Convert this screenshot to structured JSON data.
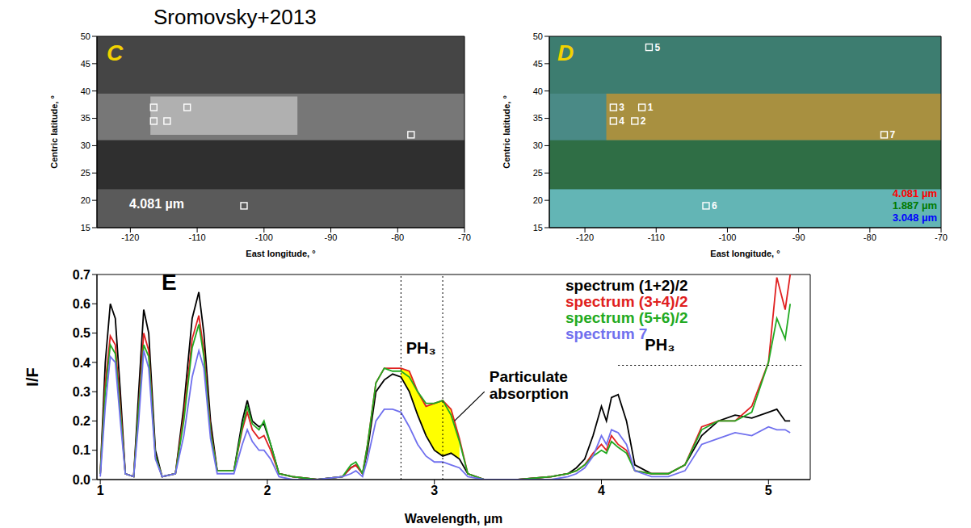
{
  "chart_data": [
    {
      "type": "scatter",
      "panel": "C",
      "title": "Sromovsky+2013",
      "annotation": "4.081 µm",
      "x_label": "East longitude, °",
      "y_label": "Centric latitude, °",
      "xlim": [
        -125,
        -70
      ],
      "ylim": [
        15,
        50
      ],
      "xticks": [
        -120,
        -110,
        -100,
        -90,
        -80,
        -70
      ],
      "yticks": [
        15,
        20,
        25,
        30,
        35,
        40,
        45,
        50
      ],
      "regions": [
        {
          "xlim": [
            -125,
            -70
          ],
          "ylim": [
            15,
            50
          ],
          "color": "#454545"
        },
        {
          "xlim": [
            -125,
            -70
          ],
          "ylim": [
            31,
            39.5
          ],
          "color": "#777777"
        },
        {
          "xlim": [
            -117,
            -95
          ],
          "ylim": [
            32,
            39
          ],
          "color": "#b0b0b0"
        },
        {
          "xlim": [
            -125,
            -70
          ],
          "ylim": [
            22,
            31
          ],
          "color": "#2f2f2f"
        },
        {
          "xlim": [
            -125,
            -70
          ],
          "ylim": [
            15,
            22
          ],
          "color": "#5a5a5a"
        }
      ],
      "marker": "square",
      "color": "#ffffff",
      "points": [
        {
          "x": -116.5,
          "y": 37
        },
        {
          "x": -116.5,
          "y": 34.5
        },
        {
          "x": -114.5,
          "y": 34.5
        },
        {
          "x": -111.5,
          "y": 37
        },
        {
          "x": -78,
          "y": 32
        },
        {
          "x": -103,
          "y": 19
        }
      ]
    },
    {
      "type": "scatter",
      "panel": "D",
      "x_label": "East longitude, °",
      "y_label": "Centric latitude, °",
      "xlim": [
        -125,
        -70
      ],
      "ylim": [
        15,
        50
      ],
      "xticks": [
        -120,
        -110,
        -100,
        -90,
        -80,
        -70
      ],
      "yticks": [
        15,
        20,
        25,
        30,
        35,
        40,
        45,
        50
      ],
      "regions": [
        {
          "xlim": [
            -125,
            -70
          ],
          "ylim": [
            15,
            50
          ],
          "color": "#3d7d70"
        },
        {
          "xlim": [
            -125,
            -70
          ],
          "ylim": [
            31,
            39.5
          ],
          "color": "#4a8a86"
        },
        {
          "xlim": [
            -117,
            -70
          ],
          "ylim": [
            31,
            39.5
          ],
          "color": "#a89040"
        },
        {
          "xlim": [
            -125,
            -70
          ],
          "ylim": [
            22,
            31
          ],
          "color": "#2f6e45"
        },
        {
          "xlim": [
            -125,
            -70
          ],
          "ylim": [
            15,
            22
          ],
          "color": "#63b5b5"
        }
      ],
      "marker": "square",
      "color": "#ffffff",
      "points": [
        {
          "x": -112,
          "y": 37,
          "label": "1"
        },
        {
          "x": -113,
          "y": 34.5,
          "label": "2"
        },
        {
          "x": -116,
          "y": 37,
          "label": "3"
        },
        {
          "x": -116,
          "y": 34.5,
          "label": "4"
        },
        {
          "x": -111,
          "y": 48,
          "label": "5"
        },
        {
          "x": -103,
          "y": 19,
          "label": "6"
        },
        {
          "x": -78,
          "y": 32,
          "label": "7"
        }
      ],
      "legend": "lower right",
      "channels": [
        {
          "name": "4.081 µm",
          "color": "#ff0000"
        },
        {
          "name": "1.887 µm",
          "color": "#007a00"
        },
        {
          "name": "3.048 µm",
          "color": "#0000ff"
        }
      ]
    },
    {
      "type": "line",
      "panel": "E",
      "x_label": "Wavelength, µm",
      "y_label": "I/F",
      "xlim": [
        0.98,
        5.25
      ],
      "ylim": [
        0,
        0.7
      ],
      "xticks": [
        1,
        2,
        3,
        4,
        5
      ],
      "yticks": [
        {
          "value": 0,
          "label": "0.0"
        },
        {
          "value": 0.1,
          "label": "0.1"
        },
        {
          "value": 0.2,
          "label": "0.2"
        },
        {
          "value": 0.3,
          "label": "0.3"
        },
        {
          "value": 0.4,
          "label": "0.4"
        },
        {
          "value": 0.5,
          "label": "0.5"
        },
        {
          "value": 0.6,
          "label": "0.6"
        },
        {
          "value": 0.7,
          "label": "0.7"
        }
      ],
      "legend": "upper center",
      "x": [
        1.0,
        1.03,
        1.06,
        1.09,
        1.12,
        1.15,
        1.2,
        1.23,
        1.26,
        1.29,
        1.33,
        1.37,
        1.45,
        1.5,
        1.55,
        1.59,
        1.62,
        1.66,
        1.7,
        1.8,
        1.85,
        1.88,
        1.91,
        1.95,
        1.98,
        2.02,
        2.07,
        2.15,
        2.3,
        2.45,
        2.5,
        2.53,
        2.57,
        2.6,
        2.65,
        2.7,
        2.75,
        2.8,
        2.85,
        2.9,
        2.95,
        3.0,
        3.05,
        3.1,
        3.15,
        3.2,
        3.3,
        3.5,
        3.7,
        3.8,
        3.85,
        3.9,
        3.95,
        4.0,
        4.03,
        4.06,
        4.1,
        4.15,
        4.2,
        4.3,
        4.4,
        4.5,
        4.6,
        4.7,
        4.8,
        4.9,
        5.0,
        5.05,
        5.1,
        5.13
      ],
      "series": [
        {
          "name": "spectrum (1+2)/2",
          "color": "#000000",
          "values": [
            0.02,
            0.4,
            0.6,
            0.55,
            0.3,
            0.02,
            0.01,
            0.3,
            0.58,
            0.5,
            0.1,
            0.01,
            0.02,
            0.25,
            0.55,
            0.64,
            0.5,
            0.2,
            0.03,
            0.03,
            0.2,
            0.27,
            0.2,
            0.18,
            0.19,
            0.12,
            0.02,
            0.01,
            0.0,
            0.01,
            0.04,
            0.05,
            0.02,
            0.1,
            0.3,
            0.34,
            0.36,
            0.35,
            0.3,
            0.22,
            0.15,
            0.1,
            0.08,
            0.09,
            0.07,
            0.02,
            0.0,
            0.0,
            0.01,
            0.02,
            0.04,
            0.07,
            0.15,
            0.25,
            0.2,
            0.28,
            0.29,
            0.2,
            0.05,
            0.02,
            0.02,
            0.05,
            0.15,
            0.2,
            0.22,
            0.21,
            0.23,
            0.24,
            0.2,
            0.2
          ]
        },
        {
          "name": "spectrum (3+4)/2",
          "color": "#e02020",
          "values": [
            0.02,
            0.33,
            0.49,
            0.46,
            0.25,
            0.02,
            0.01,
            0.25,
            0.5,
            0.44,
            0.08,
            0.01,
            0.02,
            0.22,
            0.48,
            0.56,
            0.44,
            0.17,
            0.03,
            0.03,
            0.17,
            0.23,
            0.17,
            0.14,
            0.15,
            0.1,
            0.02,
            0.01,
            0.0,
            0.01,
            0.04,
            0.05,
            0.02,
            0.12,
            0.33,
            0.38,
            0.38,
            0.38,
            0.37,
            0.3,
            0.25,
            0.26,
            0.27,
            0.24,
            0.14,
            0.02,
            0.0,
            0.0,
            0.01,
            0.02,
            0.03,
            0.05,
            0.09,
            0.12,
            0.1,
            0.15,
            0.12,
            0.1,
            0.03,
            0.02,
            0.02,
            0.05,
            0.18,
            0.2,
            0.2,
            0.25,
            0.4,
            0.69,
            0.58,
            0.7
          ]
        },
        {
          "name": "spectrum (5+6)/2",
          "color": "#22aa22",
          "values": [
            0.02,
            0.3,
            0.46,
            0.43,
            0.23,
            0.02,
            0.01,
            0.24,
            0.46,
            0.42,
            0.08,
            0.01,
            0.02,
            0.2,
            0.45,
            0.53,
            0.42,
            0.16,
            0.03,
            0.03,
            0.18,
            0.25,
            0.19,
            0.17,
            0.2,
            0.12,
            0.02,
            0.01,
            0.0,
            0.01,
            0.05,
            0.06,
            0.02,
            0.12,
            0.33,
            0.38,
            0.37,
            0.37,
            0.35,
            0.3,
            0.26,
            0.26,
            0.27,
            0.22,
            0.13,
            0.02,
            0.0,
            0.0,
            0.01,
            0.02,
            0.03,
            0.05,
            0.08,
            0.1,
            0.09,
            0.13,
            0.11,
            0.09,
            0.03,
            0.02,
            0.02,
            0.05,
            0.17,
            0.2,
            0.2,
            0.23,
            0.4,
            0.55,
            0.48,
            0.6
          ]
        },
        {
          "name": "spectrum 7",
          "color": "#7070ee",
          "values": [
            0.01,
            0.25,
            0.42,
            0.4,
            0.2,
            0.02,
            0.01,
            0.2,
            0.44,
            0.38,
            0.07,
            0.01,
            0.02,
            0.15,
            0.35,
            0.44,
            0.38,
            0.14,
            0.02,
            0.02,
            0.12,
            0.17,
            0.13,
            0.1,
            0.1,
            0.07,
            0.01,
            0.0,
            0.0,
            0.01,
            0.02,
            0.03,
            0.01,
            0.07,
            0.2,
            0.24,
            0.24,
            0.23,
            0.18,
            0.12,
            0.08,
            0.06,
            0.06,
            0.05,
            0.04,
            0.01,
            0.0,
            0.0,
            0.0,
            0.01,
            0.02,
            0.04,
            0.08,
            0.15,
            0.12,
            0.17,
            0.16,
            0.12,
            0.03,
            0.01,
            0.01,
            0.03,
            0.12,
            0.14,
            0.16,
            0.15,
            0.18,
            0.17,
            0.17,
            0.16
          ]
        }
      ],
      "shaded": {
        "text": "Particulate absorption",
        "between": [
          "spectrum (1+2)/2",
          "spectrum (3+4)/2"
        ],
        "xlim": [
          2.8,
          3.15
        ],
        "color": "#ffff00",
        "x": 3.3,
        "y": 0.3,
        "target": {
          "x": 3.12,
          "y": 0.2
        }
      },
      "annotations": [
        {
          "text": "PH₃",
          "x": 2.92,
          "y": 0.45
        },
        {
          "text": "PH₃",
          "x": 4.35,
          "y": 0.46
        }
      ],
      "vlines": [
        2.8,
        3.05
      ],
      "hline": {
        "y": 0.39,
        "x": [
          4.1,
          5.2
        ]
      },
      "line_style": "dotted"
    }
  ]
}
